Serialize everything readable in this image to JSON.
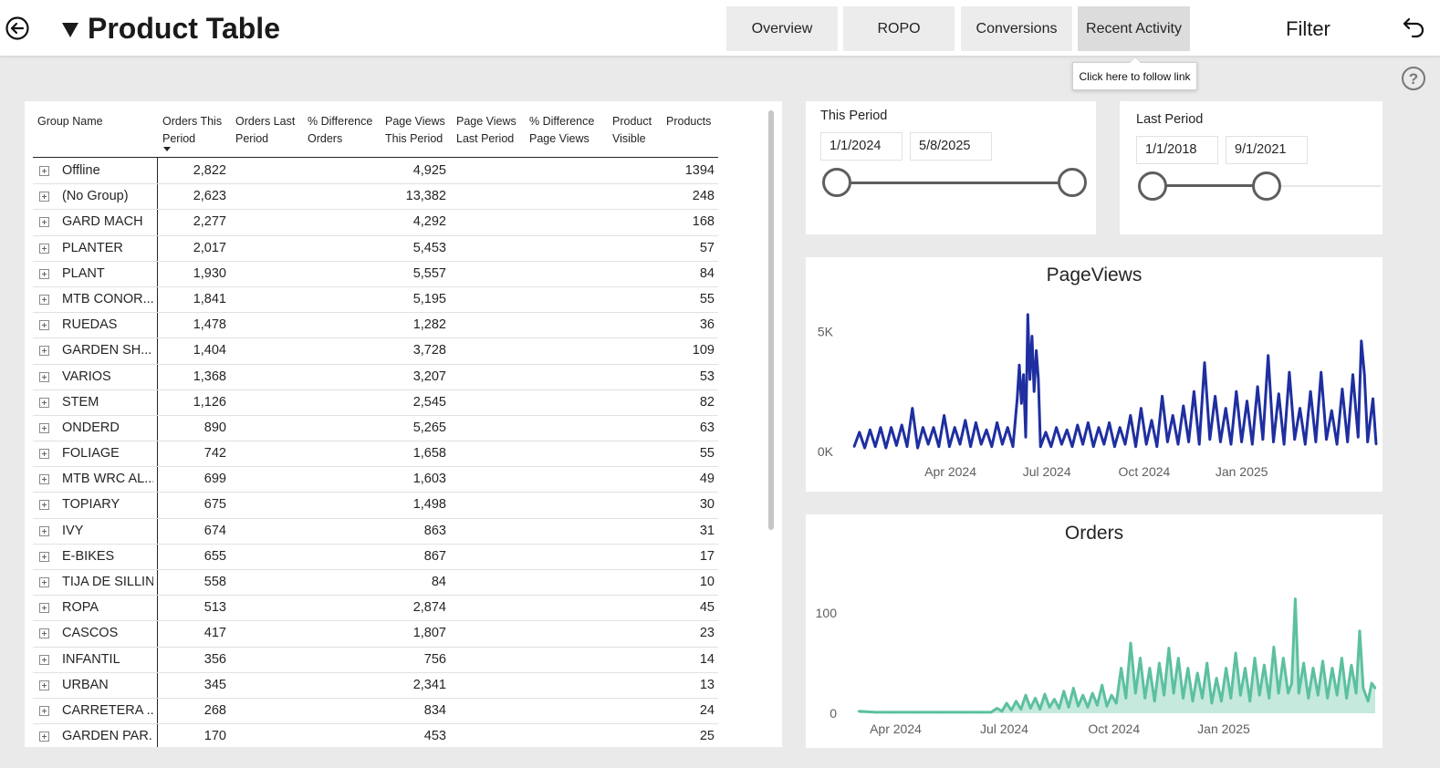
{
  "header": {
    "title": "Product Table",
    "nav": [
      "Overview",
      "ROPO",
      "Conversions",
      "Recent Activity"
    ],
    "filter_label": "Filter",
    "tooltip": "Click here to follow link"
  },
  "table": {
    "columns": [
      "Group Name",
      "Orders This Period",
      "Orders Last Period",
      "% Difference Orders",
      "Page Views This Period",
      "Page Views Last Period",
      "% Difference Page Views",
      "Product Visible",
      "Products"
    ],
    "rows": [
      {
        "name": "Offline",
        "orders": "2,822",
        "pageviews": "4,925",
        "products": "1394"
      },
      {
        "name": "(No Group)",
        "orders": "2,623",
        "pageviews": "13,382",
        "products": "248"
      },
      {
        "name": "GARD MACH",
        "orders": "2,277",
        "pageviews": "4,292",
        "products": "168"
      },
      {
        "name": "PLANTER",
        "orders": "2,017",
        "pageviews": "5,453",
        "products": "57"
      },
      {
        "name": "PLANT",
        "orders": "1,930",
        "pageviews": "5,557",
        "products": "84"
      },
      {
        "name": "MTB CONOR...",
        "orders": "1,841",
        "pageviews": "5,195",
        "products": "55"
      },
      {
        "name": "RUEDAS",
        "orders": "1,478",
        "pageviews": "1,282",
        "products": "36"
      },
      {
        "name": "GARDEN SH...",
        "orders": "1,404",
        "pageviews": "3,728",
        "products": "109"
      },
      {
        "name": "VARIOS",
        "orders": "1,368",
        "pageviews": "3,207",
        "products": "53"
      },
      {
        "name": "STEM",
        "orders": "1,126",
        "pageviews": "2,545",
        "products": "82"
      },
      {
        "name": "ONDERD",
        "orders": "890",
        "pageviews": "5,265",
        "products": "63"
      },
      {
        "name": "FOLIAGE",
        "orders": "742",
        "pageviews": "1,658",
        "products": "55"
      },
      {
        "name": "MTB WRC AL...",
        "orders": "699",
        "pageviews": "1,603",
        "products": "49"
      },
      {
        "name": "TOPIARY",
        "orders": "675",
        "pageviews": "1,498",
        "products": "30"
      },
      {
        "name": "IVY",
        "orders": "674",
        "pageviews": "863",
        "products": "31"
      },
      {
        "name": "E-BIKES",
        "orders": "655",
        "pageviews": "867",
        "products": "17"
      },
      {
        "name": "TIJA DE SILLIN",
        "orders": "558",
        "pageviews": "84",
        "products": "10"
      },
      {
        "name": "ROPA",
        "orders": "513",
        "pageviews": "2,874",
        "products": "45"
      },
      {
        "name": "CASCOS",
        "orders": "417",
        "pageviews": "1,807",
        "products": "23"
      },
      {
        "name": "INFANTIL",
        "orders": "356",
        "pageviews": "756",
        "products": "14"
      },
      {
        "name": "URBAN",
        "orders": "345",
        "pageviews": "2,341",
        "products": "13"
      },
      {
        "name": "CARRETERA ...",
        "orders": "268",
        "pageviews": "834",
        "products": "24"
      },
      {
        "name": "GARDEN PAR...",
        "orders": "170",
        "pageviews": "453",
        "products": "25"
      }
    ]
  },
  "this_period": {
    "title": "This Period",
    "start": "1/1/2024",
    "end": "5/8/2025",
    "range_fraction": [
      0,
      1
    ]
  },
  "last_period": {
    "title": "Last Period",
    "start": "1/1/2018",
    "end": "9/1/2021",
    "range_fraction": [
      0,
      0.5
    ]
  },
  "chart_data": [
    {
      "type": "line",
      "title": "PageViews",
      "color": "#1f2fa0",
      "xlim": [
        "2024-01-01",
        "2025-05-08"
      ],
      "ylim": [
        0,
        6000
      ],
      "yticks": [
        {
          "value": 0,
          "label": "0K"
        },
        {
          "value": 5000,
          "label": "5K"
        }
      ],
      "xticks": [
        {
          "date": "2024-04-01",
          "label": "Apr 2024"
        },
        {
          "date": "2024-07-01",
          "label": "Jul 2024"
        },
        {
          "date": "2024-10-01",
          "label": "Oct 2024"
        },
        {
          "date": "2025-01-01",
          "label": "Jan 2025"
        }
      ],
      "points": [
        [
          "2024-01-01",
          200
        ],
        [
          "2024-01-06",
          800
        ],
        [
          "2024-01-11",
          150
        ],
        [
          "2024-01-16",
          900
        ],
        [
          "2024-01-21",
          200
        ],
        [
          "2024-01-26",
          1000
        ],
        [
          "2024-01-31",
          150
        ],
        [
          "2024-02-05",
          1000
        ],
        [
          "2024-02-10",
          250
        ],
        [
          "2024-02-15",
          1100
        ],
        [
          "2024-02-20",
          200
        ],
        [
          "2024-02-25",
          1800
        ],
        [
          "2024-03-01",
          150
        ],
        [
          "2024-03-06",
          1000
        ],
        [
          "2024-03-11",
          300
        ],
        [
          "2024-03-16",
          1000
        ],
        [
          "2024-03-21",
          200
        ],
        [
          "2024-03-26",
          1500
        ],
        [
          "2024-03-31",
          200
        ],
        [
          "2024-04-05",
          1000
        ],
        [
          "2024-04-10",
          300
        ],
        [
          "2024-04-15",
          1300
        ],
        [
          "2024-04-20",
          200
        ],
        [
          "2024-04-25",
          1200
        ],
        [
          "2024-04-30",
          300
        ],
        [
          "2024-05-05",
          900
        ],
        [
          "2024-05-10",
          200
        ],
        [
          "2024-05-15",
          1200
        ],
        [
          "2024-05-20",
          300
        ],
        [
          "2024-05-25",
          1000
        ],
        [
          "2024-05-30",
          200
        ],
        [
          "2024-06-01",
          1200
        ],
        [
          "2024-06-03",
          2200
        ],
        [
          "2024-06-05",
          3600
        ],
        [
          "2024-06-07",
          2000
        ],
        [
          "2024-06-09",
          3200
        ],
        [
          "2024-06-11",
          600
        ],
        [
          "2024-06-13",
          5700
        ],
        [
          "2024-06-15",
          3000
        ],
        [
          "2024-06-17",
          4800
        ],
        [
          "2024-06-19",
          2500
        ],
        [
          "2024-06-21",
          4200
        ],
        [
          "2024-06-23",
          3000
        ],
        [
          "2024-06-25",
          200
        ],
        [
          "2024-06-30",
          800
        ],
        [
          "2024-07-05",
          200
        ],
        [
          "2024-07-10",
          1000
        ],
        [
          "2024-07-15",
          300
        ],
        [
          "2024-07-20",
          900
        ],
        [
          "2024-07-25",
          200
        ],
        [
          "2024-07-30",
          1100
        ],
        [
          "2024-08-04",
          300
        ],
        [
          "2024-08-09",
          1200
        ],
        [
          "2024-08-14",
          200
        ],
        [
          "2024-08-19",
          1000
        ],
        [
          "2024-08-24",
          300
        ],
        [
          "2024-08-29",
          1200
        ],
        [
          "2024-09-03",
          200
        ],
        [
          "2024-09-08",
          1000
        ],
        [
          "2024-09-13",
          300
        ],
        [
          "2024-09-18",
          1500
        ],
        [
          "2024-09-23",
          200
        ],
        [
          "2024-09-28",
          1800
        ],
        [
          "2024-10-03",
          300
        ],
        [
          "2024-10-08",
          1300
        ],
        [
          "2024-10-13",
          200
        ],
        [
          "2024-10-18",
          2300
        ],
        [
          "2024-10-23",
          400
        ],
        [
          "2024-10-28",
          1500
        ],
        [
          "2024-11-02",
          300
        ],
        [
          "2024-11-07",
          1900
        ],
        [
          "2024-11-12",
          400
        ],
        [
          "2024-11-17",
          2500
        ],
        [
          "2024-11-22",
          300
        ],
        [
          "2024-11-27",
          3700
        ],
        [
          "2024-12-02",
          500
        ],
        [
          "2024-12-07",
          2300
        ],
        [
          "2024-12-12",
          400
        ],
        [
          "2024-12-17",
          1800
        ],
        [
          "2024-12-22",
          300
        ],
        [
          "2024-12-27",
          2500
        ],
        [
          "2025-01-01",
          400
        ],
        [
          "2025-01-06",
          2100
        ],
        [
          "2025-01-11",
          300
        ],
        [
          "2025-01-16",
          2700
        ],
        [
          "2025-01-21",
          500
        ],
        [
          "2025-01-26",
          4000
        ],
        [
          "2025-01-31",
          400
        ],
        [
          "2025-02-05",
          2400
        ],
        [
          "2025-02-10",
          300
        ],
        [
          "2025-02-15",
          3300
        ],
        [
          "2025-02-20",
          500
        ],
        [
          "2025-02-25",
          1800
        ],
        [
          "2025-03-02",
          300
        ],
        [
          "2025-03-07",
          2500
        ],
        [
          "2025-03-12",
          400
        ],
        [
          "2025-03-17",
          3300
        ],
        [
          "2025-03-22",
          500
        ],
        [
          "2025-03-27",
          1700
        ],
        [
          "2025-04-01",
          300
        ],
        [
          "2025-04-06",
          2600
        ],
        [
          "2025-04-11",
          400
        ],
        [
          "2025-04-16",
          3200
        ],
        [
          "2025-04-21",
          600
        ],
        [
          "2025-04-24",
          4600
        ],
        [
          "2025-04-27",
          3200
        ],
        [
          "2025-04-30",
          400
        ],
        [
          "2025-05-05",
          2200
        ],
        [
          "2025-05-08",
          300
        ]
      ]
    },
    {
      "type": "area",
      "title": "Orders",
      "color": "#5cc0a0",
      "xlim": [
        "2024-03-01",
        "2025-05-08"
      ],
      "ylim": [
        0,
        130
      ],
      "yticks": [
        {
          "value": 0,
          "label": "0"
        },
        {
          "value": 100,
          "label": "100"
        }
      ],
      "xticks": [
        {
          "date": "2024-04-01",
          "label": "Apr 2024"
        },
        {
          "date": "2024-07-01",
          "label": "Jul 2024"
        },
        {
          "date": "2024-10-01",
          "label": "Oct 2024"
        },
        {
          "date": "2025-01-01",
          "label": "Jan 2025"
        }
      ],
      "points": [
        [
          "2024-03-01",
          2
        ],
        [
          "2024-03-15",
          1
        ],
        [
          "2024-04-01",
          1
        ],
        [
          "2024-04-20",
          1
        ],
        [
          "2024-05-10",
          1
        ],
        [
          "2024-05-25",
          1
        ],
        [
          "2024-06-10",
          1
        ],
        [
          "2024-06-20",
          1
        ],
        [
          "2024-06-25",
          5
        ],
        [
          "2024-06-29",
          2
        ],
        [
          "2024-07-03",
          10
        ],
        [
          "2024-07-07",
          3
        ],
        [
          "2024-07-11",
          12
        ],
        [
          "2024-07-15",
          4
        ],
        [
          "2024-07-19",
          18
        ],
        [
          "2024-07-23",
          5
        ],
        [
          "2024-07-27",
          15
        ],
        [
          "2024-07-31",
          4
        ],
        [
          "2024-08-04",
          19
        ],
        [
          "2024-08-08",
          6
        ],
        [
          "2024-08-12",
          14
        ],
        [
          "2024-08-16",
          5
        ],
        [
          "2024-08-20",
          22
        ],
        [
          "2024-08-24",
          6
        ],
        [
          "2024-08-28",
          25
        ],
        [
          "2024-09-01",
          7
        ],
        [
          "2024-09-05",
          18
        ],
        [
          "2024-09-09",
          6
        ],
        [
          "2024-09-13",
          20
        ],
        [
          "2024-09-17",
          8
        ],
        [
          "2024-09-21",
          28
        ],
        [
          "2024-09-25",
          7
        ],
        [
          "2024-09-29",
          18
        ],
        [
          "2024-10-03",
          10
        ],
        [
          "2024-10-07",
          45
        ],
        [
          "2024-10-11",
          15
        ],
        [
          "2024-10-15",
          70
        ],
        [
          "2024-10-19",
          20
        ],
        [
          "2024-10-23",
          55
        ],
        [
          "2024-10-27",
          15
        ],
        [
          "2024-10-31",
          45
        ],
        [
          "2024-11-04",
          12
        ],
        [
          "2024-11-08",
          50
        ],
        [
          "2024-11-12",
          18
        ],
        [
          "2024-11-16",
          65
        ],
        [
          "2024-11-20",
          20
        ],
        [
          "2024-11-24",
          55
        ],
        [
          "2024-11-28",
          15
        ],
        [
          "2024-12-02",
          45
        ],
        [
          "2024-12-06",
          12
        ],
        [
          "2024-12-10",
          40
        ],
        [
          "2024-12-14",
          15
        ],
        [
          "2024-12-18",
          50
        ],
        [
          "2024-12-22",
          10
        ],
        [
          "2024-12-26",
          35
        ],
        [
          "2024-12-30",
          12
        ],
        [
          "2025-01-03",
          45
        ],
        [
          "2025-01-07",
          15
        ],
        [
          "2025-01-11",
          60
        ],
        [
          "2025-01-15",
          18
        ],
        [
          "2025-01-19",
          45
        ],
        [
          "2025-01-23",
          12
        ],
        [
          "2025-01-27",
          55
        ],
        [
          "2025-01-31",
          18
        ],
        [
          "2025-02-04",
          48
        ],
        [
          "2025-02-08",
          15
        ],
        [
          "2025-02-12",
          66
        ],
        [
          "2025-02-16",
          20
        ],
        [
          "2025-02-20",
          55
        ],
        [
          "2025-02-24",
          20
        ],
        [
          "2025-02-27",
          30
        ],
        [
          "2025-03-02",
          114
        ],
        [
          "2025-03-05",
          20
        ],
        [
          "2025-03-09",
          50
        ],
        [
          "2025-03-13",
          15
        ],
        [
          "2025-03-17",
          45
        ],
        [
          "2025-03-21",
          18
        ],
        [
          "2025-03-25",
          52
        ],
        [
          "2025-03-29",
          15
        ],
        [
          "2025-04-02",
          45
        ],
        [
          "2025-04-06",
          18
        ],
        [
          "2025-04-10",
          55
        ],
        [
          "2025-04-14",
          15
        ],
        [
          "2025-04-18",
          48
        ],
        [
          "2025-04-22",
          20
        ],
        [
          "2025-04-25",
          82
        ],
        [
          "2025-04-28",
          25
        ],
        [
          "2025-05-02",
          12
        ],
        [
          "2025-05-05",
          30
        ],
        [
          "2025-05-08",
          25
        ]
      ]
    }
  ]
}
